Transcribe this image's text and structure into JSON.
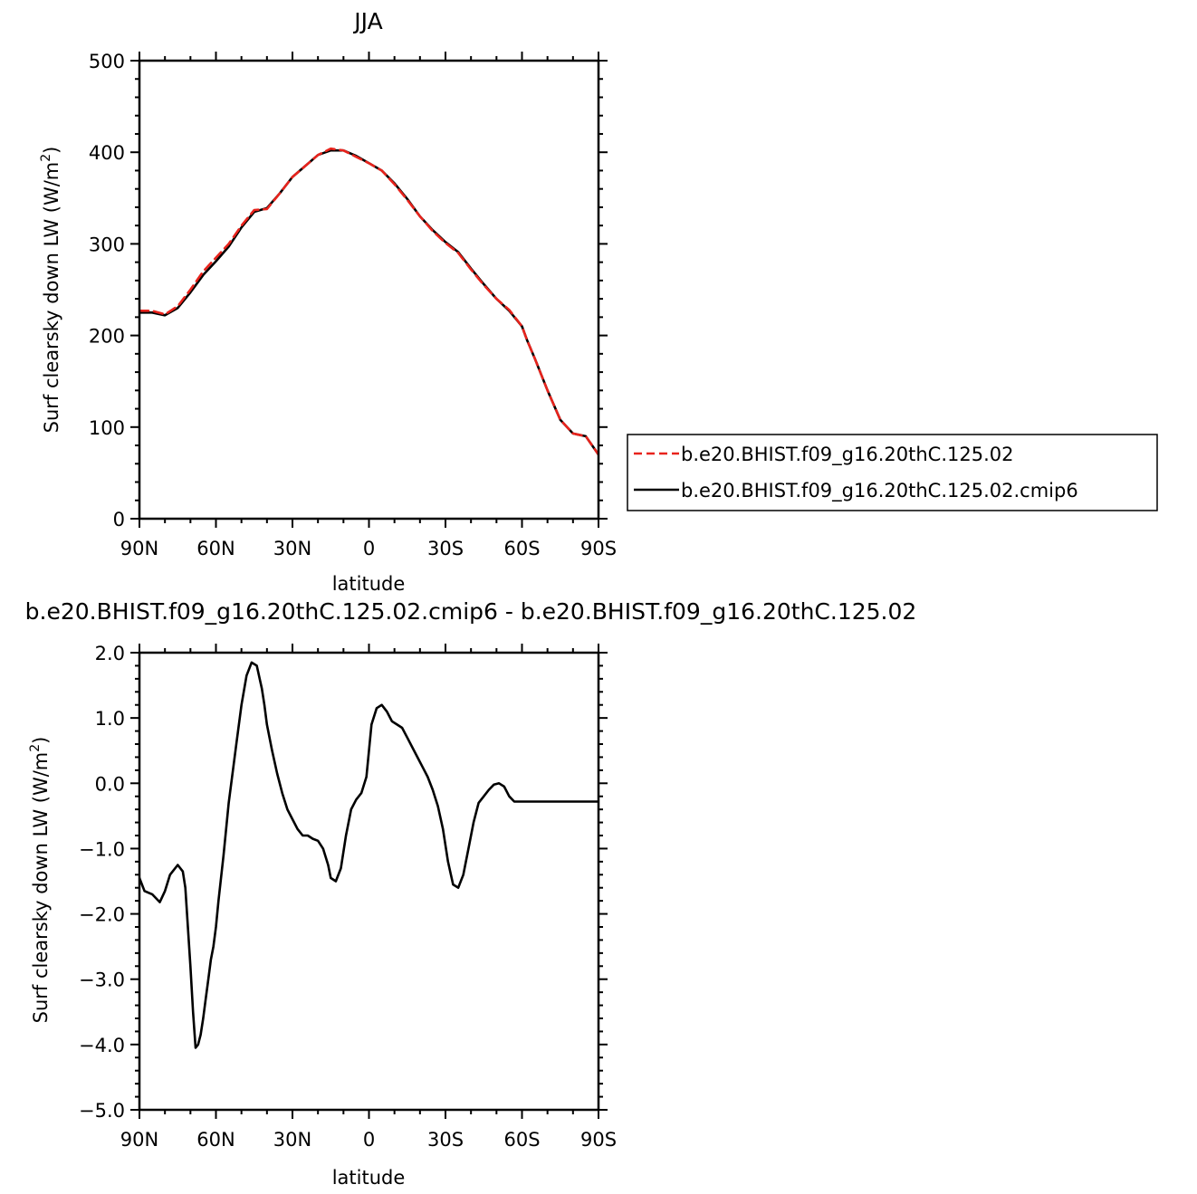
{
  "chart_data": [
    {
      "type": "line",
      "title": "JJA",
      "xlabel": "latitude",
      "ylabel": "Surf clearsky down LW (W/m",
      "ylabel_superscript": "2",
      "ylabel_close": ")",
      "x_ticks": [
        "90N",
        "60N",
        "30N",
        "0",
        "30S",
        "60S",
        "90S"
      ],
      "y_ticks": [
        "0",
        "100",
        "200",
        "300",
        "400",
        "500"
      ],
      "xlim": [
        90,
        -90
      ],
      "ylim": [
        0,
        500
      ],
      "legend_position": "right",
      "series": [
        {
          "name": "b.e20.BHIST.f09_g16.20thC.125.02",
          "color": "#e8231c",
          "dash": "dashed",
          "x": [
            90,
            85,
            80,
            75,
            70,
            65,
            60,
            55,
            50,
            45,
            40,
            35,
            30,
            25,
            20,
            15,
            10,
            5,
            0,
            -5,
            -10,
            -15,
            -20,
            -25,
            -30,
            -35,
            -40,
            -45,
            -50,
            -55,
            -60,
            -62,
            -65,
            -70,
            -75,
            -80,
            -85,
            -88,
            -90
          ],
          "y": [
            227,
            227,
            223,
            232,
            250,
            270,
            285,
            300,
            320,
            337,
            338,
            355,
            373,
            385,
            397,
            404,
            402,
            395,
            388,
            380,
            365,
            348,
            330,
            314,
            301,
            290,
            272,
            255,
            240,
            228,
            210,
            195,
            175,
            140,
            108,
            93,
            90,
            78,
            70
          ]
        },
        {
          "name": "b.e20.BHIST.f09_g16.20thC.125.02.cmip6",
          "color": "#000000",
          "dash": "solid",
          "x": [
            90,
            85,
            80,
            75,
            70,
            65,
            60,
            55,
            50,
            45,
            40,
            35,
            30,
            25,
            20,
            15,
            10,
            5,
            0,
            -5,
            -10,
            -15,
            -20,
            -25,
            -30,
            -35,
            -40,
            -45,
            -50,
            -55,
            -60,
            -62,
            -65,
            -70,
            -75,
            -80,
            -85,
            -88,
            -90
          ],
          "y": [
            225,
            225,
            222,
            230,
            247,
            266,
            281,
            297,
            318,
            335,
            339,
            355,
            373,
            385,
            397,
            402,
            402,
            396,
            388,
            380,
            366,
            349,
            330,
            315,
            302,
            291,
            273,
            256,
            240,
            227,
            210,
            195,
            175,
            140,
            108,
            93,
            90,
            78,
            70
          ]
        }
      ]
    },
    {
      "type": "line",
      "title": "b.e20.BHIST.f09_g16.20thC.125.02.cmip6 - b.e20.BHIST.f09_g16.20thC.125.02",
      "xlabel": "latitude",
      "ylabel": "Surf clearsky down LW (W/m",
      "ylabel_superscript": "2",
      "ylabel_close": ")",
      "x_ticks": [
        "90N",
        "60N",
        "30N",
        "0",
        "30S",
        "60S",
        "90S"
      ],
      "y_ticks": [
        "−5.0",
        "−4.0",
        "−3.0",
        "−2.0",
        "−1.0",
        "0.0",
        "1.0",
        "2.0"
      ],
      "xlim": [
        90,
        -90
      ],
      "ylim": [
        -5,
        2
      ],
      "series": [
        {
          "color": "#000000",
          "dash": "solid",
          "x": [
            90,
            88,
            85,
            82,
            80,
            78,
            75,
            73,
            72,
            71,
            70,
            69,
            68,
            67,
            66,
            65,
            64,
            63,
            62,
            61,
            60,
            59,
            57,
            55,
            52,
            50,
            48,
            46,
            44,
            42,
            41,
            40,
            38,
            36,
            34,
            32,
            30,
            28,
            26,
            24,
            22,
            20,
            18,
            16,
            15,
            13,
            11,
            9,
            7,
            5,
            3,
            1,
            0,
            -1,
            -3,
            -5,
            -7,
            -9,
            -11,
            -13,
            -15,
            -17,
            -19,
            -21,
            -23,
            -25,
            -27,
            -29,
            -31,
            -33,
            -35,
            -37,
            -39,
            -41,
            -43,
            -45,
            -47,
            -49,
            -51,
            -53,
            -55,
            -57,
            -59,
            -61,
            -63,
            -64,
            -65,
            -66,
            -67,
            -69,
            -71,
            -73,
            -75,
            -77,
            -79,
            -81,
            -83,
            -85,
            -88,
            -90
          ],
          "y": [
            -1.45,
            -1.65,
            -1.7,
            -1.82,
            -1.65,
            -1.4,
            -1.25,
            -1.35,
            -1.6,
            -2.2,
            -2.8,
            -3.5,
            -4.05,
            -4.0,
            -3.85,
            -3.6,
            -3.3,
            -3.0,
            -2.7,
            -2.5,
            -2.2,
            -1.8,
            -1.1,
            -0.3,
            0.6,
            1.2,
            1.65,
            1.85,
            1.8,
            1.45,
            1.2,
            0.9,
            0.5,
            0.15,
            -0.15,
            -0.4,
            -0.55,
            -0.7,
            -0.8,
            -0.8,
            -0.85,
            -0.88,
            -1.0,
            -1.25,
            -1.45,
            -1.5,
            -1.3,
            -0.8,
            -0.4,
            -0.25,
            -0.15,
            0.1,
            0.5,
            0.9,
            1.15,
            1.2,
            1.1,
            0.95,
            0.9,
            0.85,
            0.7,
            0.55,
            0.4,
            0.25,
            0.1,
            -0.1,
            -0.35,
            -0.7,
            -1.2,
            -1.55,
            -1.6,
            -1.4,
            -1.0,
            -0.6,
            -0.3,
            -0.2,
            -0.1,
            -0.02,
            0.0,
            -0.05,
            -0.2,
            -0.28,
            -0.28,
            -0.28,
            -0.28,
            -0.28,
            -0.28,
            -0.28,
            -0.28,
            -0.28,
            -0.28,
            -0.28,
            -0.28,
            -0.28,
            -0.28,
            -0.28,
            -0.28,
            -0.28,
            -0.28,
            -0.28
          ]
        }
      ]
    }
  ]
}
